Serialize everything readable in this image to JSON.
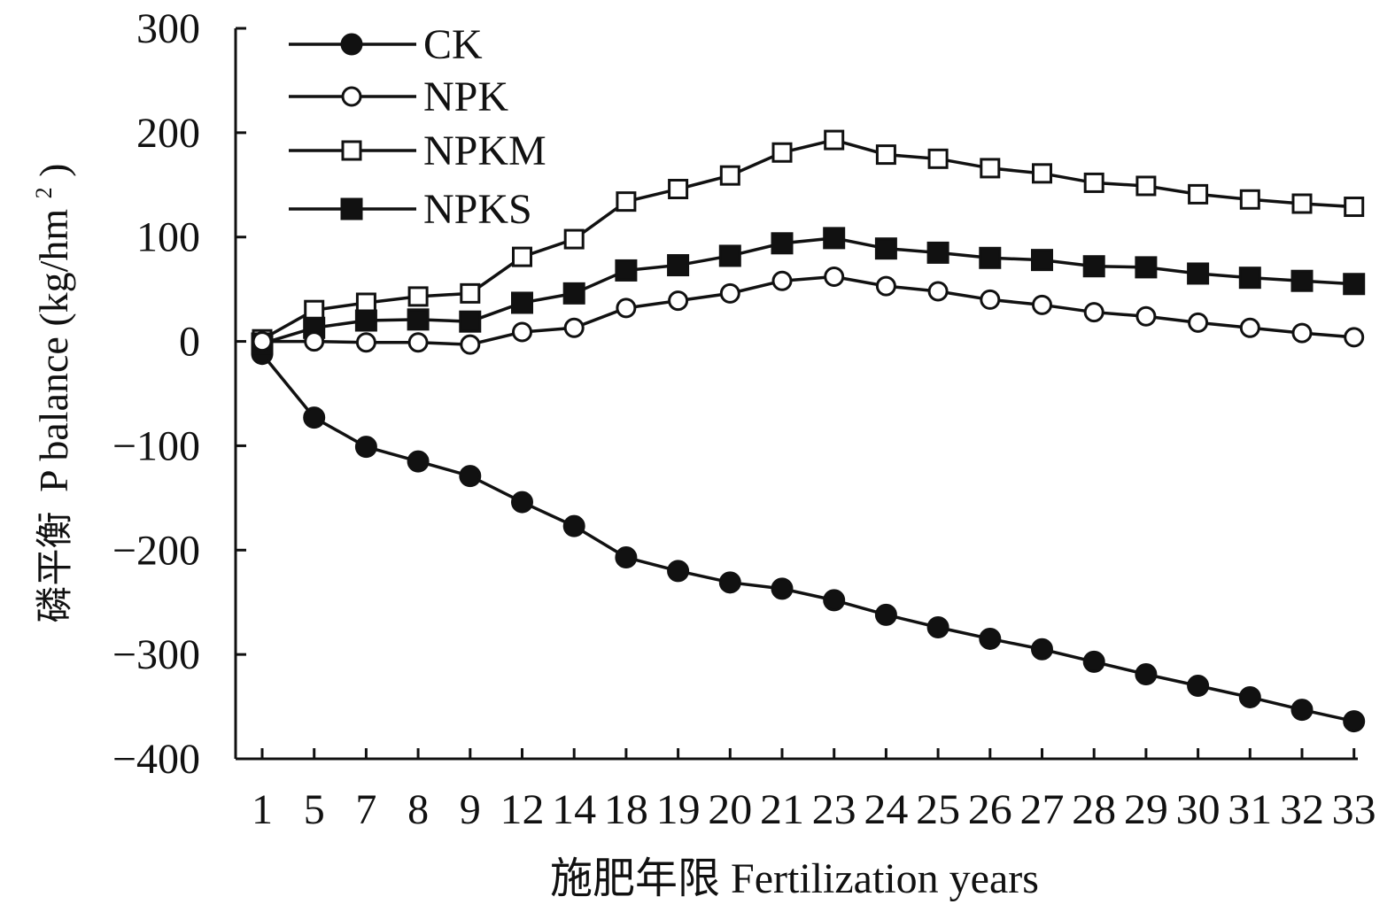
{
  "chart_data": {
    "type": "line",
    "xlabel": "施肥年限 Fertilization years",
    "ylabel_zh": "磷平衡",
    "ylabel_en": "P balance (kg/hm",
    "ylabel_sup": "2",
    "ylabel_close": ")",
    "ylim": [
      -400,
      300
    ],
    "yticks": [
      300,
      200,
      100,
      0,
      -100,
      -200,
      -300,
      -400
    ],
    "ytick_labels": [
      "300",
      "200",
      "100",
      "0",
      "−100",
      "−200",
      "−300",
      "−400"
    ],
    "categories": [
      "1",
      "5",
      "7",
      "8",
      "9",
      "12",
      "14",
      "18",
      "19",
      "20",
      "21",
      "23",
      "24",
      "25",
      "26",
      "27",
      "28",
      "29",
      "30",
      "31",
      "32",
      "33"
    ],
    "legend_position": "top-left",
    "grid": false,
    "series": [
      {
        "name": "CK",
        "marker": "circle-filled",
        "values": [
          -12,
          -73,
          -101,
          -115,
          -129,
          -154,
          -177,
          -207,
          -220,
          -231,
          -237,
          -248,
          -262,
          -274,
          -285,
          -295,
          -307,
          -319,
          -330,
          -341,
          -353,
          -364
        ]
      },
      {
        "name": "NPK",
        "marker": "circle-open",
        "values": [
          0,
          0,
          -1,
          -1,
          -3,
          9,
          13,
          32,
          39,
          46,
          58,
          62,
          53,
          48,
          40,
          35,
          28,
          24,
          18,
          13,
          8,
          4
        ]
      },
      {
        "name": "NPKM",
        "marker": "square-open",
        "values": [
          2,
          30,
          37,
          43,
          46,
          81,
          98,
          134,
          146,
          159,
          181,
          193,
          179,
          175,
          166,
          161,
          152,
          149,
          141,
          136,
          132,
          129
        ]
      },
      {
        "name": "NPKS",
        "marker": "square-filled",
        "values": [
          -2,
          13,
          20,
          21,
          19,
          37,
          46,
          68,
          73,
          82,
          94,
          99,
          89,
          85,
          80,
          78,
          72,
          71,
          65,
          61,
          58,
          55
        ]
      }
    ]
  }
}
